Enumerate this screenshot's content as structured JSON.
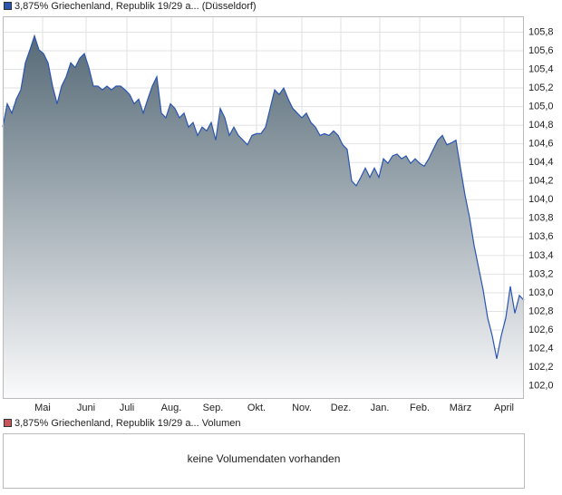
{
  "chart_data": {
    "type": "area",
    "series": [
      {
        "name": "3,875% Griechenland, Republik 19/29 a... (Düsseldorf)",
        "color": "#2a55b0",
        "values": [
          104.78,
          105.03,
          104.93,
          105.08,
          105.18,
          105.47,
          105.61,
          105.76,
          105.61,
          105.57,
          105.47,
          105.22,
          105.03,
          105.22,
          105.32,
          105.47,
          105.42,
          105.52,
          105.57,
          105.42,
          105.22,
          105.22,
          105.18,
          105.22,
          105.18,
          105.22,
          105.22,
          105.18,
          105.13,
          105.03,
          105.08,
          104.93,
          105.08,
          105.22,
          105.32,
          104.93,
          104.88,
          105.03,
          104.98,
          104.88,
          104.93,
          104.78,
          104.83,
          104.69,
          104.78,
          104.74,
          104.83,
          104.64,
          104.98,
          104.88,
          104.69,
          104.78,
          104.69,
          104.64,
          104.59,
          104.69,
          104.71,
          104.71,
          104.78,
          104.98,
          105.18,
          105.13,
          105.2,
          105.08,
          104.98,
          104.93,
          104.88,
          104.93,
          104.83,
          104.78,
          104.69,
          104.71,
          104.69,
          104.74,
          104.69,
          104.59,
          104.54,
          104.2,
          104.15,
          104.24,
          104.34,
          104.24,
          104.34,
          104.24,
          104.44,
          104.39,
          104.47,
          104.49,
          104.44,
          104.47,
          104.39,
          104.44,
          104.39,
          104.36,
          104.44,
          104.54,
          104.64,
          104.69,
          104.59,
          104.61,
          104.64,
          104.34,
          104.05,
          103.81,
          103.51,
          103.27,
          103.03,
          102.73,
          102.54,
          102.29,
          102.54,
          102.73,
          103.07,
          102.78,
          102.97,
          102.92
        ]
      }
    ],
    "xlim": [
      0,
      115
    ],
    "xticks": [
      {
        "value": 8.8,
        "label": "Mai"
      },
      {
        "value": 18.4,
        "label": "Juni"
      },
      {
        "value": 27.4,
        "label": "Juli"
      },
      {
        "value": 37.2,
        "label": "Aug."
      },
      {
        "value": 46.4,
        "label": "Sep."
      },
      {
        "value": 56,
        "label": "Okt."
      },
      {
        "value": 66,
        "label": "Nov."
      },
      {
        "value": 74.6,
        "label": "Dez."
      },
      {
        "value": 83.2,
        "label": "Jan."
      },
      {
        "value": 92,
        "label": "Feb."
      },
      {
        "value": 101,
        "label": "März"
      },
      {
        "value": 110.6,
        "label": "April"
      }
    ],
    "ylim": [
      101.86,
      105.97
    ],
    "yticks": [
      {
        "value": 102.0,
        "label": "102,0"
      },
      {
        "value": 102.2,
        "label": "102,2"
      },
      {
        "value": 102.4,
        "label": "102,4"
      },
      {
        "value": 102.6,
        "label": "102,6"
      },
      {
        "value": 102.8,
        "label": "102,8"
      },
      {
        "value": 103.0,
        "label": "103,0"
      },
      {
        "value": 103.2,
        "label": "103,2"
      },
      {
        "value": 103.4,
        "label": "103,4"
      },
      {
        "value": 103.6,
        "label": "103,6"
      },
      {
        "value": 103.8,
        "label": "103,8"
      },
      {
        "value": 104.0,
        "label": "104,0"
      },
      {
        "value": 104.2,
        "label": "104,2"
      },
      {
        "value": 104.4,
        "label": "104,4"
      },
      {
        "value": 104.6,
        "label": "104,6"
      },
      {
        "value": 104.8,
        "label": "104,8"
      },
      {
        "value": 105.0,
        "label": "105,0"
      },
      {
        "value": 105.2,
        "label": "105,2"
      },
      {
        "value": 105.4,
        "label": "105,4"
      },
      {
        "value": 105.6,
        "label": "105,6"
      },
      {
        "value": 105.8,
        "label": "105,8"
      }
    ],
    "grid": true
  },
  "volume_panel": {
    "legend": "3,875% Griechenland, Republik 19/29 a... Volumen",
    "legend_color": "#c9545a",
    "message": "keine Volumendaten vorhanden"
  }
}
